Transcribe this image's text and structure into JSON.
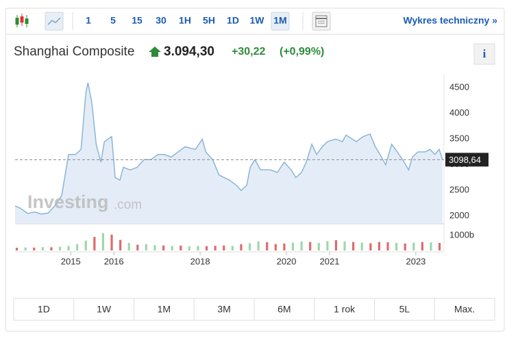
{
  "toolbar": {
    "intervals": [
      "1",
      "5",
      "15",
      "30",
      "1H",
      "5H",
      "1D",
      "1W",
      "1M"
    ],
    "selected": 8,
    "link": "Wykres techniczny »"
  },
  "header": {
    "name": "Shanghai Composite",
    "price": "3.094,30",
    "change": "+30,22",
    "change_pct": "(+0,99%)",
    "info": "i"
  },
  "watermark": [
    "Investing",
    ".com"
  ],
  "ranges": [
    "1D",
    "1W",
    "1M",
    "3M",
    "6M",
    "1 rok",
    "5L",
    "Max."
  ],
  "chart_data": [
    {
      "type": "area",
      "color": "#8ab4d8",
      "fill": "#dde9f5",
      "x": [
        2013.71,
        2013.84,
        2014.0,
        2014.16,
        2014.32,
        2014.48,
        2014.63,
        2014.79,
        2014.95,
        2015.11,
        2015.24,
        2015.35,
        2015.4,
        2015.49,
        2015.59,
        2015.7,
        2015.78,
        2015.95,
        2016.03,
        2016.14,
        2016.22,
        2016.38,
        2016.54,
        2016.7,
        2016.86,
        2017.02,
        2017.17,
        2017.33,
        2017.65,
        2017.89,
        2018.05,
        2018.13,
        2018.29,
        2018.44,
        2018.68,
        2018.84,
        2018.95,
        2019.08,
        2019.16,
        2019.27,
        2019.4,
        2019.63,
        2019.79,
        2019.95,
        2020.11,
        2020.22,
        2020.35,
        2020.46,
        2020.59,
        2020.7,
        2020.83,
        2020.95,
        2021.14,
        2021.3,
        2021.38,
        2021.49,
        2021.62,
        2021.78,
        2021.94,
        2022.06,
        2022.17,
        2022.3,
        2022.44,
        2022.57,
        2022.73,
        2022.83,
        2022.92,
        2023.05,
        2023.21,
        2023.33,
        2023.44,
        2023.54,
        2023.62
      ],
      "values": [
        2200,
        2150,
        2050,
        2080,
        2040,
        2060,
        2200,
        2400,
        3200,
        3200,
        3300,
        4400,
        4600,
        4200,
        3400,
        3050,
        3450,
        3550,
        2750,
        2700,
        2950,
        2900,
        2950,
        3100,
        3100,
        3200,
        3200,
        3150,
        3350,
        3300,
        3500,
        3250,
        3100,
        2800,
        2700,
        2600,
        2500,
        2600,
        2950,
        3100,
        2900,
        2900,
        2850,
        3050,
        2900,
        2750,
        2850,
        3050,
        3400,
        3200,
        3350,
        3450,
        3500,
        3450,
        3580,
        3520,
        3450,
        3550,
        3600,
        3350,
        3200,
        3000,
        3400,
        3250,
        3050,
        2900,
        3150,
        3250,
        3250,
        3300,
        3200,
        3300,
        3100
      ],
      "xlim": [
        2013.71,
        2023.62
      ],
      "xticks": [
        2015,
        2016,
        2018,
        2020,
        2021,
        2023
      ],
      "ylim": [
        1850,
        4770
      ],
      "yticks": [
        2000,
        2500,
        3000,
        3500,
        4000,
        4500
      ],
      "grid": false,
      "current": {
        "value": 3098.64,
        "label": "3098,64"
      }
    },
    {
      "type": "bar",
      "x": [
        2013.75,
        2013.95,
        2014.15,
        2014.35,
        2014.55,
        2014.75,
        2014.95,
        2015.15,
        2015.35,
        2015.55,
        2015.75,
        2015.95,
        2016.15,
        2016.35,
        2016.55,
        2016.75,
        2016.95,
        2017.15,
        2017.35,
        2017.55,
        2017.75,
        2017.95,
        2018.15,
        2018.35,
        2018.55,
        2018.75,
        2018.95,
        2019.15,
        2019.35,
        2019.55,
        2019.75,
        2019.95,
        2020.15,
        2020.35,
        2020.55,
        2020.75,
        2020.95,
        2021.15,
        2021.35,
        2021.55,
        2021.75,
        2021.95,
        2022.15,
        2022.35,
        2022.55,
        2022.75,
        2022.95,
        2023.15,
        2023.35,
        2023.55
      ],
      "values": [
        180,
        200,
        190,
        220,
        210,
        250,
        300,
        420,
        650,
        900,
        1150,
        1050,
        700,
        500,
        380,
        420,
        350,
        330,
        300,
        320,
        280,
        300,
        290,
        310,
        330,
        300,
        420,
        480,
        600,
        550,
        420,
        460,
        520,
        600,
        560,
        500,
        620,
        680,
        600,
        560,
        520,
        480,
        560,
        540,
        500,
        460,
        520,
        560,
        540,
        500
      ],
      "colors": [
        "#e06a6a",
        "#9fd8a8",
        "#e06a6a",
        "#9fd8a8",
        "#e06a6a",
        "#9fd8a8",
        "#9fd8a8",
        "#9fd8a8",
        "#9fd8a8",
        "#e06a6a",
        "#9fd8a8",
        "#e06a6a",
        "#e06a6a",
        "#9fd8a8",
        "#e06a6a",
        "#9fd8a8",
        "#9fd8a8",
        "#e06a6a",
        "#9fd8a8",
        "#e06a6a",
        "#9fd8a8",
        "#9fd8a8",
        "#e06a6a",
        "#e06a6a",
        "#e06a6a",
        "#9fd8a8",
        "#e06a6a",
        "#9fd8a8",
        "#9fd8a8",
        "#e06a6a",
        "#e06a6a",
        "#e06a6a",
        "#9fd8a8",
        "#9fd8a8",
        "#e06a6a",
        "#9fd8a8",
        "#9fd8a8",
        "#e06a6a",
        "#9fd8a8",
        "#e06a6a",
        "#9fd8a8",
        "#e06a6a",
        "#e06a6a",
        "#e06a6a",
        "#9fd8a8",
        "#e06a6a",
        "#9fd8a8",
        "#e06a6a",
        "#9fd8a8",
        "#e06a6a"
      ],
      "xlim": [
        2013.71,
        2023.62
      ],
      "ylim": [
        0,
        1180
      ],
      "yticks": [
        {
          "value": 1000,
          "label": "1000b"
        }
      ]
    }
  ]
}
